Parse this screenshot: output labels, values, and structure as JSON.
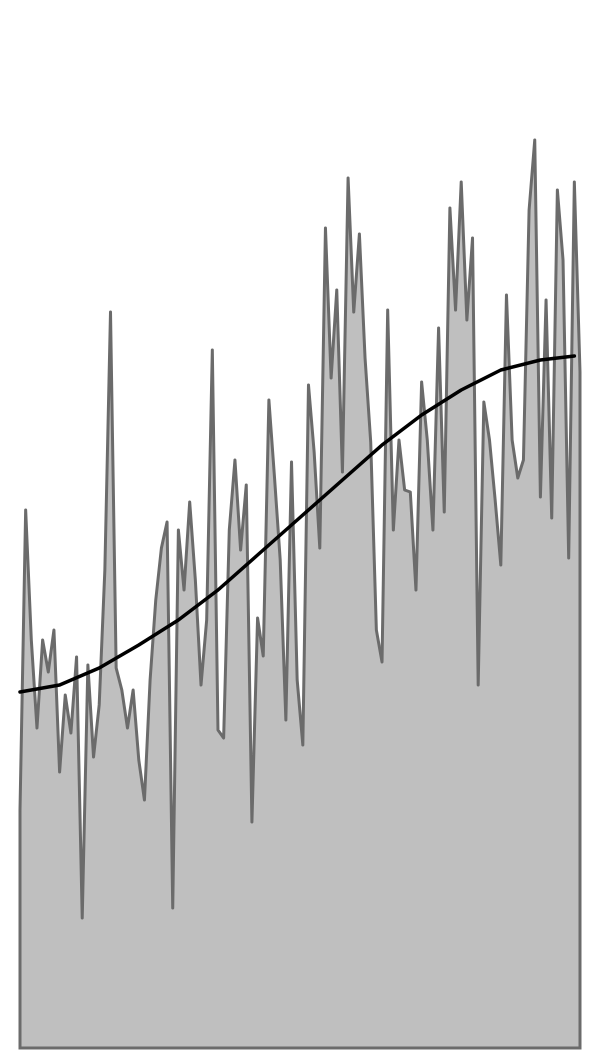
{
  "chart_data": {
    "type": "area",
    "xlim": [
      0,
      99
    ],
    "ylim": [
      0,
      104.8
    ],
    "series": [
      {
        "color": "#6b6b6b",
        "fill": "#bfbfbf",
        "x": [
          0,
          1,
          2,
          3,
          4,
          5,
          6,
          7,
          8,
          9,
          10,
          11,
          12,
          13,
          14,
          15,
          16,
          17,
          18,
          19,
          20,
          21,
          22,
          23,
          24,
          25,
          26,
          27,
          28,
          29,
          30,
          31,
          32,
          33,
          34,
          35,
          36,
          37,
          38,
          39,
          40,
          41,
          42,
          43,
          44,
          45,
          46,
          47,
          48,
          49,
          50,
          51,
          52,
          53,
          54,
          55,
          56,
          57,
          58,
          59,
          60,
          61,
          62,
          63,
          64,
          65,
          66,
          67,
          68,
          69,
          70,
          71,
          72,
          73,
          74,
          75,
          76,
          77,
          78,
          79,
          80,
          81,
          82,
          83,
          84,
          85,
          86,
          87,
          88,
          89,
          90,
          91,
          92,
          93,
          94,
          95,
          96,
          97,
          98,
          99
        ],
        "values": [
          23.8,
          53.8,
          40.8,
          32,
          40.8,
          37.6,
          41.8,
          27.6,
          35.3,
          31.5,
          39.1,
          13,
          38.3,
          29.1,
          34.3,
          47.8,
          73.6,
          38,
          35.8,
          32,
          35.8,
          28.8,
          24.8,
          36.8,
          44.8,
          50,
          52.6,
          14,
          51.8,
          45.8,
          54.6,
          46.8,
          36.3,
          42.8,
          69.8,
          31.8,
          31,
          51.8,
          58.8,
          49.8,
          56.3,
          22.6,
          43,
          39.2,
          64.8,
          57,
          48.8,
          32.8,
          58.6,
          36.8,
          30.3,
          66.3,
          59.6,
          50,
          82,
          67,
          75.8,
          57.6,
          87,
          73.6,
          81.4,
          69,
          60.6,
          41.8,
          38.6,
          73.8,
          51.8,
          60.8,
          55.8,
          55.6,
          45.8,
          66.6,
          60.8,
          51.8,
          72,
          53.6,
          84,
          73.8,
          86.6,
          72.8,
          81,
          36.3,
          64.6,
          60.8,
          54.8,
          48.3,
          75.3,
          60.8,
          57,
          58.8,
          83.8,
          90.8,
          55.1,
          74.8,
          53,
          85.8,
          78.8,
          49,
          86.6,
          67.6
        ]
      },
      {
        "color": "#000000",
        "x": [
          0,
          7,
          14,
          21,
          28,
          35,
          42,
          49,
          57,
          64,
          71,
          78,
          85,
          92,
          98
        ],
        "values": [
          35.6,
          36.3,
          38,
          40.3,
          42.8,
          45.8,
          49.3,
          52.8,
          56.8,
          60.3,
          63.3,
          65.8,
          67.8,
          68.8,
          69.2
        ]
      }
    ]
  }
}
